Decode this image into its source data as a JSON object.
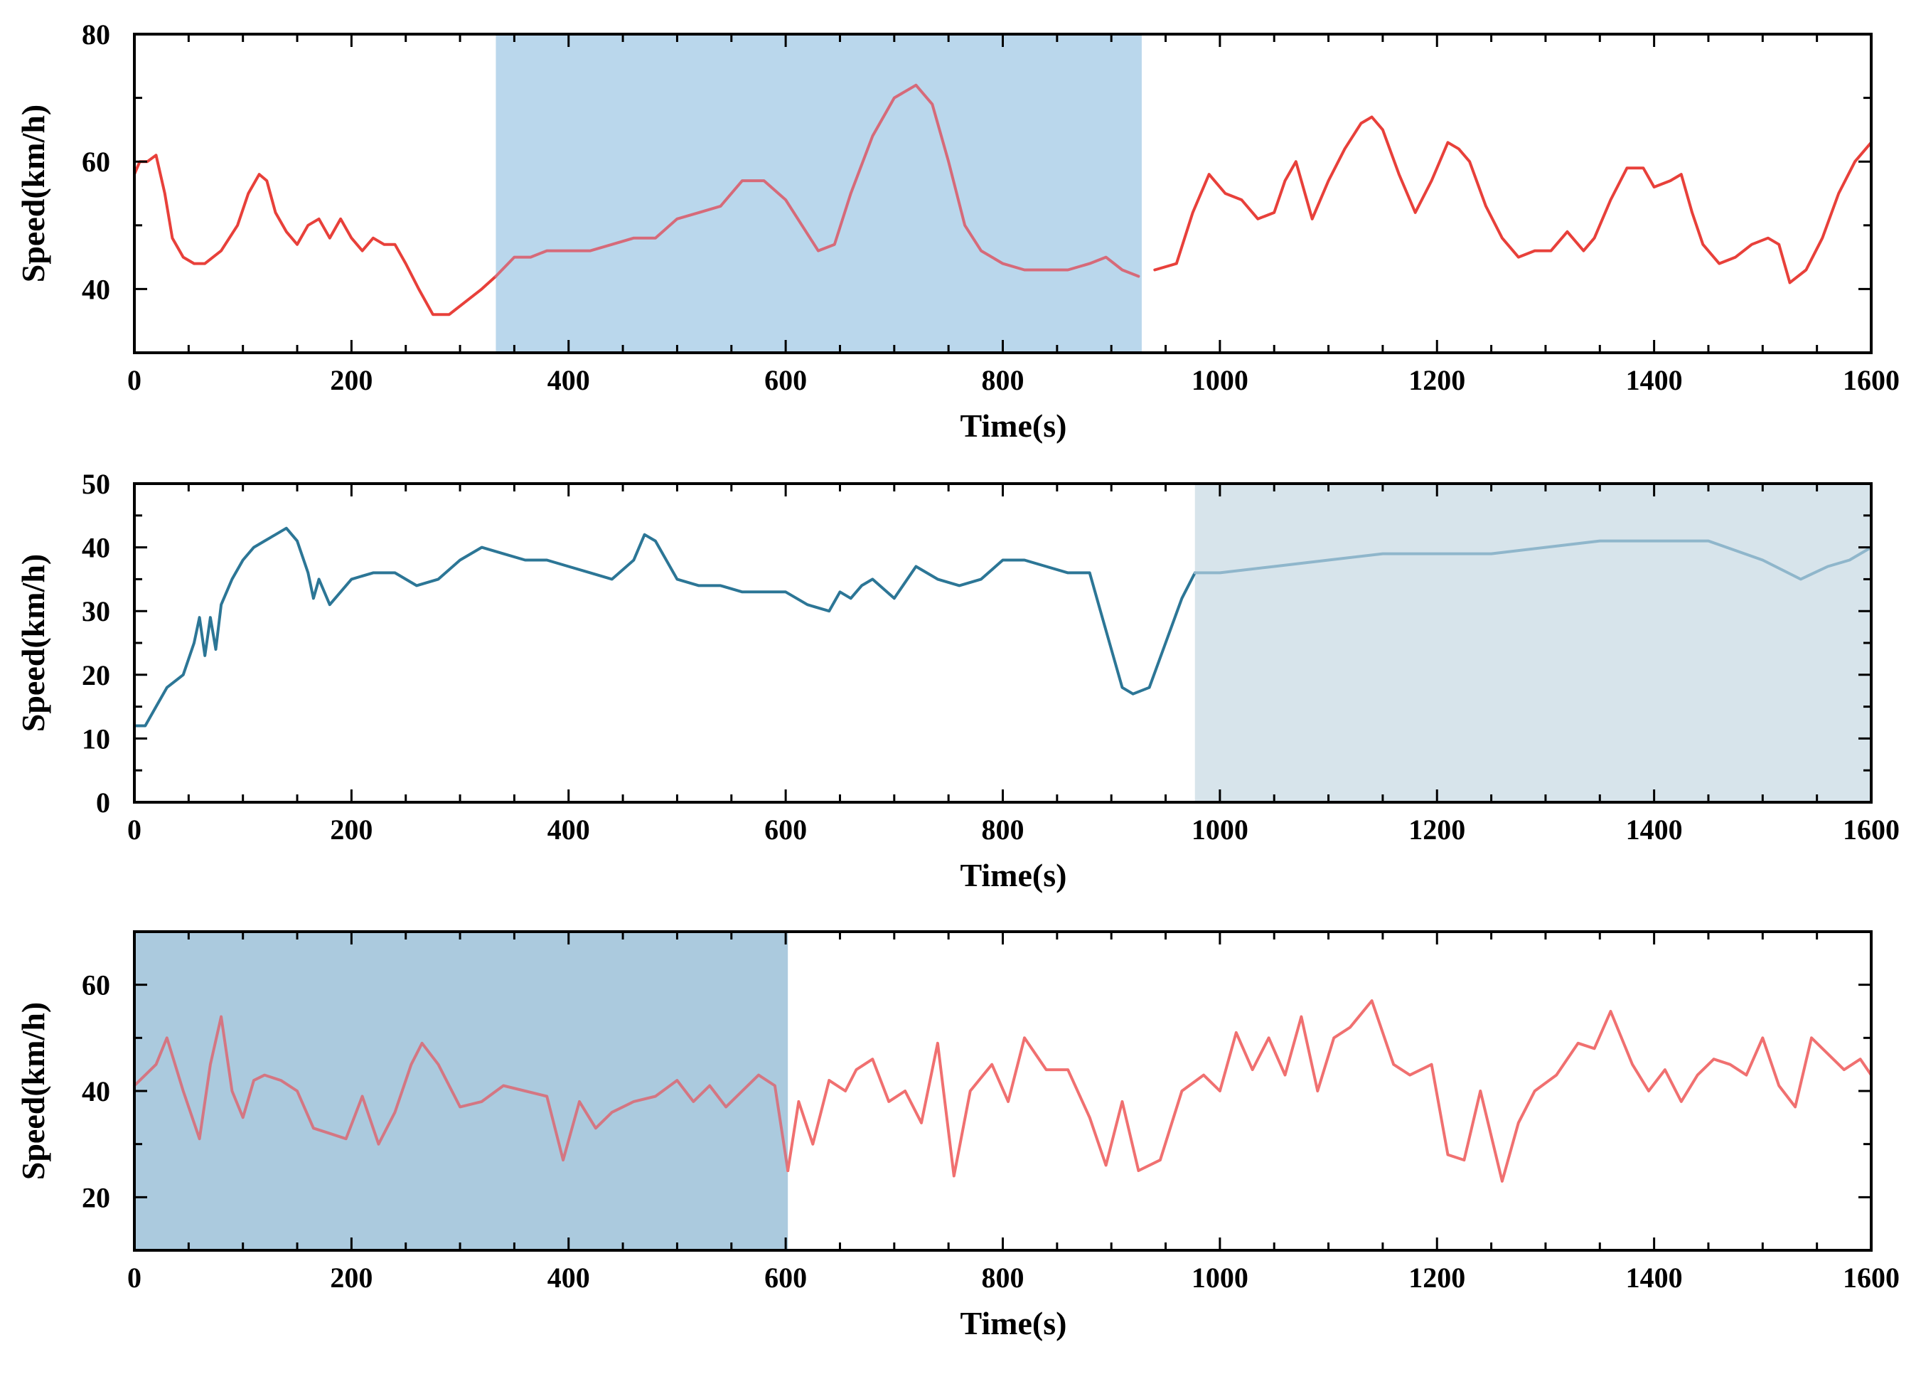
{
  "chart_data": [
    {
      "type": "line",
      "panel": "top",
      "title": "",
      "xlabel": "Time(s)",
      "ylabel": "Speed(km/h)",
      "xlim": [
        0,
        1600
      ],
      "ylim": [
        30,
        80
      ],
      "xticks": [
        0,
        200,
        400,
        600,
        800,
        1000,
        1200,
        1400,
        1600
      ],
      "yticks": [
        40,
        60,
        80
      ],
      "highlight": {
        "x_range": [
          333,
          928
        ],
        "color": "#bad7ec"
      },
      "series": [
        {
          "name": "speed",
          "color": "#e8403a",
          "colors_by_segment": [
            {
              "x_range": [
                0,
                333
              ],
              "color": "#e8403a"
            },
            {
              "x_range": [
                333,
                928
              ],
              "color": "#d66a79"
            },
            {
              "x_range": [
                928,
                1600
              ],
              "color": "#e8403a"
            }
          ],
          "x": [
            0,
            5,
            12,
            20,
            28,
            35,
            45,
            55,
            65,
            80,
            95,
            105,
            115,
            122,
            130,
            140,
            150,
            160,
            170,
            180,
            190,
            200,
            210,
            220,
            230,
            240,
            250,
            262,
            275,
            290,
            305,
            320,
            333,
            350,
            365,
            380,
            400,
            420,
            440,
            460,
            480,
            500,
            520,
            540,
            560,
            580,
            600,
            615,
            630,
            645,
            660,
            680,
            700,
            720,
            735,
            750,
            765,
            780,
            800,
            820,
            840,
            860,
            880,
            895,
            910,
            925,
            940,
            960,
            975,
            990,
            1005,
            1020,
            1035,
            1050,
            1060,
            1070,
            1085,
            1100,
            1115,
            1130,
            1140,
            1150,
            1165,
            1180,
            1195,
            1210,
            1220,
            1230,
            1245,
            1260,
            1275,
            1290,
            1305,
            1320,
            1335,
            1345,
            1360,
            1375,
            1390,
            1400,
            1415,
            1425,
            1435,
            1445,
            1460,
            1475,
            1490,
            1505,
            1515,
            1525,
            1540,
            1555,
            1570,
            1585,
            1600
          ],
          "values": [
            58,
            60,
            60,
            61,
            55,
            48,
            45,
            44,
            44,
            46,
            50,
            55,
            58,
            57,
            52,
            49,
            47,
            50,
            51,
            48,
            51,
            48,
            46,
            48,
            47,
            47,
            44,
            40,
            36,
            36,
            38,
            40,
            42,
            45,
            45,
            46,
            46,
            46,
            47,
            48,
            48,
            51,
            52,
            53,
            57,
            57,
            54,
            50,
            46,
            47,
            55,
            64,
            70,
            72,
            69,
            60,
            50,
            46,
            44,
            43,
            43,
            43,
            44,
            45,
            43,
            42,
            43,
            44,
            52,
            58,
            55,
            54,
            51,
            52,
            57,
            60,
            51,
            57,
            62,
            66,
            67,
            65,
            58,
            52,
            57,
            63,
            62,
            60,
            53,
            48,
            45,
            46,
            46,
            49,
            46,
            48,
            54,
            59,
            59,
            56,
            57,
            58,
            52,
            47,
            44,
            45,
            47,
            48,
            47,
            41,
            43,
            48,
            55,
            60,
            63
          ]
        }
      ]
    },
    {
      "type": "line",
      "panel": "middle",
      "title": "",
      "xlabel": "Time(s)",
      "ylabel": "Speed(km/h)",
      "xlim": [
        0,
        1600
      ],
      "ylim": [
        0,
        50
      ],
      "xticks": [
        0,
        200,
        400,
        600,
        800,
        1000,
        1200,
        1400,
        1600
      ],
      "yticks": [
        0,
        10,
        20,
        30,
        40,
        50
      ],
      "highlight": {
        "x_range": [
          977,
          1600
        ],
        "color": "#d7e4eb"
      },
      "series": [
        {
          "name": "speed",
          "color": "#2c7696",
          "colors_by_segment": [
            {
              "x_range": [
                0,
                977
              ],
              "color": "#2c7696"
            },
            {
              "x_range": [
                977,
                1600
              ],
              "color": "#8fb6cb"
            }
          ],
          "x": [
            0,
            10,
            20,
            30,
            45,
            55,
            60,
            65,
            70,
            75,
            80,
            90,
            100,
            110,
            120,
            130,
            140,
            150,
            160,
            165,
            170,
            180,
            200,
            220,
            240,
            260,
            280,
            300,
            320,
            340,
            360,
            380,
            400,
            420,
            440,
            460,
            470,
            480,
            500,
            520,
            540,
            560,
            580,
            600,
            620,
            640,
            650,
            660,
            670,
            680,
            700,
            720,
            740,
            760,
            780,
            800,
            820,
            840,
            860,
            880,
            890,
            900,
            910,
            920,
            935,
            950,
            965,
            977,
            1000,
            1050,
            1100,
            1150,
            1200,
            1250,
            1300,
            1350,
            1400,
            1450,
            1500,
            1535,
            1560,
            1580,
            1600
          ],
          "values": [
            12,
            12,
            15,
            18,
            20,
            25,
            29,
            23,
            29,
            24,
            31,
            35,
            38,
            40,
            41,
            42,
            43,
            41,
            36,
            32,
            35,
            31,
            35,
            36,
            36,
            34,
            35,
            38,
            40,
            39,
            38,
            38,
            37,
            36,
            35,
            38,
            42,
            41,
            35,
            34,
            34,
            33,
            33,
            33,
            31,
            30,
            33,
            32,
            34,
            35,
            32,
            37,
            35,
            34,
            35,
            38,
            38,
            37,
            36,
            36,
            30,
            24,
            18,
            17,
            18,
            25,
            32,
            36,
            36,
            37,
            38,
            39,
            39,
            39,
            40,
            41,
            41,
            41,
            38,
            35,
            37,
            38,
            40
          ]
        }
      ]
    },
    {
      "type": "line",
      "panel": "bottom",
      "title": "",
      "xlabel": "Time(s)",
      "ylabel": "Speed(km/h)",
      "xlim": [
        0,
        1600
      ],
      "ylim": [
        10,
        70
      ],
      "xticks": [
        0,
        200,
        400,
        600,
        800,
        1000,
        1200,
        1400,
        1600
      ],
      "yticks": [
        20,
        40,
        60
      ],
      "highlight": {
        "x_range": [
          0,
          602
        ],
        "color": "#abcade"
      },
      "series": [
        {
          "name": "speed",
          "color": "#f07070",
          "colors_by_segment": [
            {
              "x_range": [
                0,
                602
              ],
              "color": "#d47682"
            },
            {
              "x_range": [
                602,
                1600
              ],
              "color": "#f07070"
            }
          ],
          "x": [
            0,
            10,
            20,
            30,
            45,
            60,
            70,
            80,
            90,
            100,
            110,
            120,
            135,
            150,
            165,
            180,
            195,
            210,
            225,
            240,
            255,
            265,
            280,
            300,
            320,
            340,
            360,
            380,
            395,
            410,
            425,
            440,
            460,
            480,
            500,
            515,
            530,
            545,
            560,
            575,
            590,
            602,
            612,
            625,
            640,
            655,
            665,
            680,
            695,
            710,
            725,
            740,
            755,
            770,
            790,
            805,
            820,
            840,
            860,
            880,
            895,
            910,
            925,
            945,
            965,
            985,
            1000,
            1015,
            1030,
            1045,
            1060,
            1075,
            1090,
            1105,
            1120,
            1140,
            1160,
            1175,
            1195,
            1210,
            1225,
            1240,
            1260,
            1275,
            1290,
            1310,
            1330,
            1345,
            1360,
            1380,
            1395,
            1410,
            1425,
            1440,
            1455,
            1470,
            1485,
            1500,
            1515,
            1530,
            1545,
            1560,
            1575,
            1590,
            1600
          ],
          "values": [
            41,
            43,
            45,
            50,
            40,
            31,
            45,
            54,
            40,
            35,
            42,
            43,
            42,
            40,
            33,
            32,
            31,
            39,
            30,
            36,
            45,
            49,
            45,
            37,
            38,
            41,
            40,
            39,
            27,
            38,
            33,
            36,
            38,
            39,
            42,
            38,
            41,
            37,
            40,
            43,
            41,
            25,
            38,
            30,
            42,
            40,
            44,
            46,
            38,
            40,
            34,
            49,
            24,
            40,
            45,
            38,
            50,
            44,
            44,
            35,
            26,
            38,
            25,
            27,
            40,
            43,
            40,
            51,
            44,
            50,
            43,
            54,
            40,
            50,
            52,
            57,
            45,
            43,
            45,
            28,
            27,
            40,
            23,
            34,
            40,
            43,
            49,
            48,
            55,
            45,
            40,
            44,
            38,
            43,
            46,
            45,
            43,
            50,
            41,
            37,
            50,
            47,
            44,
            46,
            43
          ]
        }
      ]
    }
  ]
}
